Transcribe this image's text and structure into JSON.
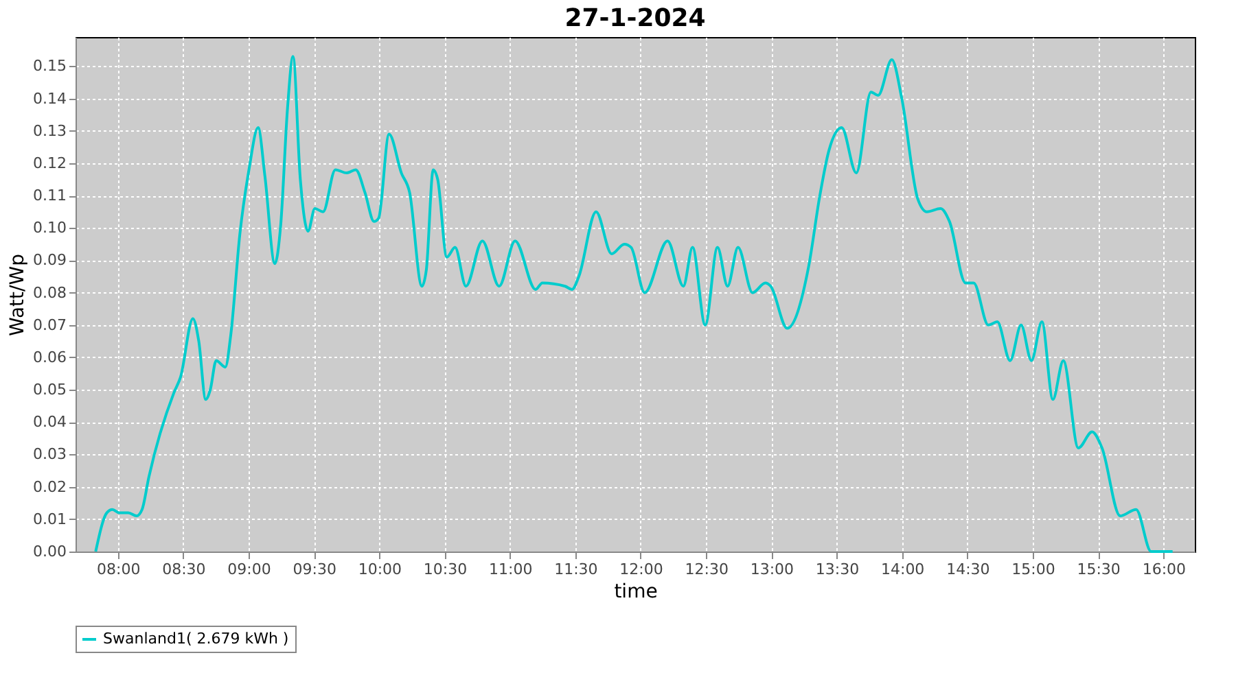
{
  "chart_data": {
    "type": "line",
    "title": "27-1-2024",
    "xlabel": "time",
    "ylabel": "Watt/Wp",
    "x": [
      7.83,
      7.916,
      7.958,
      8.01,
      8.08,
      8.143,
      8.185,
      8.237,
      8.428,
      8.48,
      8.574,
      8.619,
      8.672,
      8.707,
      8.752,
      8.822,
      8.864,
      8.933,
      9.003,
      9.073,
      9.125,
      9.201,
      9.246,
      9.298,
      9.34,
      9.396,
      9.455,
      9.507,
      9.57,
      9.664,
      9.751,
      9.82,
      9.89,
      9.96,
      9.995,
      10.075,
      10.169,
      10.232,
      10.326,
      10.36,
      10.413,
      10.447,
      10.517,
      10.58,
      10.663,
      10.789,
      10.917,
      11.039,
      11.196,
      11.248,
      11.422,
      11.475,
      11.527,
      11.659,
      11.778,
      11.875,
      11.927,
      12.031,
      12.206,
      12.327,
      12.397,
      12.494,
      12.588,
      12.665,
      12.745,
      12.856,
      12.954,
      12.995,
      13.121,
      13.285,
      13.371,
      13.441,
      13.538,
      13.65,
      13.762,
      13.817,
      13.922,
      13.998,
      14.12,
      14.19,
      14.295,
      14.363,
      14.486,
      14.548,
      14.66,
      14.729,
      14.827,
      14.911,
      14.99,
      15.07,
      15.154,
      15.234,
      15.349,
      15.454,
      15.53,
      15.669,
      15.791,
      15.906,
      16.0,
      16.07
    ],
    "series": [
      {
        "name": "Swanland1( 2.679 kWh )",
        "color": "#00cccc",
        "values": [
          0,
          0.012,
          0.013,
          0.012,
          0.012,
          0.011,
          0.013,
          0.023,
          0.049,
          0.054,
          0.072,
          0.065,
          0.047,
          0.05,
          0.059,
          0.057,
          0.067,
          0.098,
          0.118,
          0.131,
          0.116,
          0.089,
          0.101,
          0.137,
          0.153,
          0.115,
          0.099,
          0.106,
          0.105,
          0.118,
          0.117,
          0.118,
          0.111,
          0.102,
          0.103,
          0.129,
          0.117,
          0.111,
          0.082,
          0.087,
          0.118,
          0.115,
          0.091,
          0.094,
          0.082,
          0.096,
          0.082,
          0.096,
          0.081,
          0.083,
          0.082,
          0.081,
          0.085,
          0.105,
          0.092,
          0.095,
          0.094,
          0.08,
          0.096,
          0.082,
          0.094,
          0.07,
          0.094,
          0.082,
          0.094,
          0.08,
          0.083,
          0.082,
          0.069,
          0.088,
          0.11,
          0.124,
          0.131,
          0.117,
          0.142,
          0.141,
          0.152,
          0.14,
          0.109,
          0.105,
          0.106,
          0.102,
          0.083,
          0.083,
          0.07,
          0.071,
          0.059,
          0.07,
          0.059,
          0.071,
          0.047,
          0.059,
          0.032,
          0.037,
          0.032,
          0.011,
          0.013,
          0,
          0,
          0
        ]
      }
    ],
    "xlim": [
      7.676,
      16.24
    ],
    "ylim": [
      0,
      0.159
    ],
    "xticks": [
      {
        "value": 8,
        "label": "08:00"
      },
      {
        "value": 8.5,
        "label": "08:30"
      },
      {
        "value": 9,
        "label": "09:00"
      },
      {
        "value": 9.5,
        "label": "09:30"
      },
      {
        "value": 10,
        "label": "10:00"
      },
      {
        "value": 10.5,
        "label": "10:30"
      },
      {
        "value": 11,
        "label": "11:00"
      },
      {
        "value": 11.5,
        "label": "11:30"
      },
      {
        "value": 12,
        "label": "12:00"
      },
      {
        "value": 12.5,
        "label": "12:30"
      },
      {
        "value": 13,
        "label": "13:00"
      },
      {
        "value": 13.5,
        "label": "13:30"
      },
      {
        "value": 14,
        "label": "14:00"
      },
      {
        "value": 14.5,
        "label": "14:30"
      },
      {
        "value": 15,
        "label": "15:00"
      },
      {
        "value": 15.5,
        "label": "15:30"
      },
      {
        "value": 16,
        "label": "16:00"
      }
    ],
    "yticks": [
      {
        "value": 0,
        "label": "0.00"
      },
      0.01,
      0.02,
      0.03,
      0.04,
      0.05,
      0.06,
      0.07,
      0.08,
      0.09,
      {
        "value": 0.1,
        "label": "0.10"
      },
      0.11,
      0.12,
      0.13,
      0.14,
      0.15
    ],
    "grid": true,
    "legend": "bottom",
    "marker": "none",
    "line_style": "solid"
  }
}
